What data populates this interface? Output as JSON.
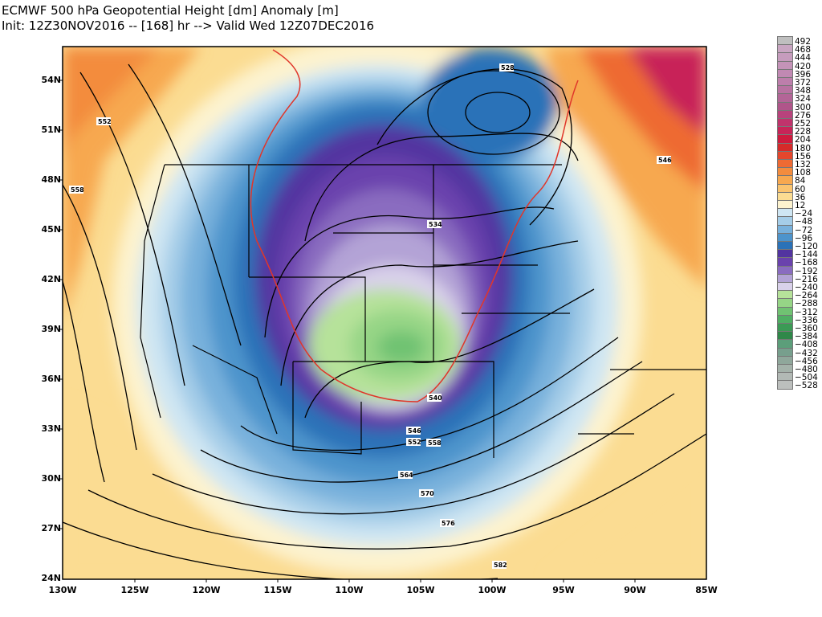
{
  "title": {
    "line1": "ECMWF 500 hPa Geopotential Height [dm] Anomaly [m]",
    "line2": "Init: 12Z30NOV2016 -- [168] hr --> Valid Wed 12Z07DEC2016"
  },
  "lat_labels": [
    "54N",
    "51N",
    "48N",
    "45N",
    "42N",
    "39N",
    "36N",
    "33N",
    "30N",
    "27N",
    "24N"
  ],
  "lon_labels": [
    "130W",
    "125W",
    "120W",
    "115W",
    "110W",
    "105W",
    "100W",
    "95W",
    "90W",
    "85W"
  ],
  "contour_labels": [
    "528",
    "534",
    "540",
    "546",
    "546",
    "552",
    "552",
    "558",
    "558",
    "564",
    "570",
    "576",
    "582"
  ],
  "colorbar": {
    "labels": [
      "492",
      "468",
      "444",
      "420",
      "396",
      "372",
      "348",
      "324",
      "300",
      "276",
      "252",
      "228",
      "204",
      "180",
      "156",
      "132",
      "108",
      "84",
      "60",
      "36",
      "12",
      "−24",
      "−48",
      "−72",
      "−96",
      "−120",
      "−144",
      "−168",
      "−192",
      "−216",
      "−240",
      "−264",
      "−288",
      "−312",
      "−336",
      "−360",
      "−384",
      "−408",
      "−432",
      "−456",
      "−480",
      "−504",
      "−528"
    ],
    "colors": [
      "#bfbfbf",
      "#c9a6c2",
      "#c69cbd",
      "#c493b8",
      "#c189b3",
      "#bd7eab",
      "#b872a1",
      "#b36597",
      "#b0558a",
      "#b8437c",
      "#c0336c",
      "#c82458",
      "#cf1a3e",
      "#d62a2a",
      "#e4462c",
      "#ee6a33",
      "#f38c3e",
      "#f7a84f",
      "#fac46f",
      "#fbdc92",
      "#fdf3cf",
      "#cfe6f3",
      "#a5cde8",
      "#78b1dc",
      "#4d94cc",
      "#2b72b8",
      "#5234a0",
      "#6a42ad",
      "#8a6cc0",
      "#b3a3d6",
      "#d9d1ea",
      "#b6e29a",
      "#96d586",
      "#70c272",
      "#4fae63",
      "#3b9a55",
      "#2f8849",
      "#5c9e7a",
      "#779f8d",
      "#8fa79b",
      "#a4b2aa",
      "#b2b9b5",
      "#bcbfbd"
    ]
  },
  "colors": {
    "warm_anomaly": "#f7a84f",
    "strong_warm_anomaly": "#d62a2a",
    "cold_anomaly": "#2b72b8",
    "deep_cold_anomaly": "#5234a0",
    "extreme_cold_anomaly": "#70c272",
    "freezing_line": "#e0362a"
  }
}
